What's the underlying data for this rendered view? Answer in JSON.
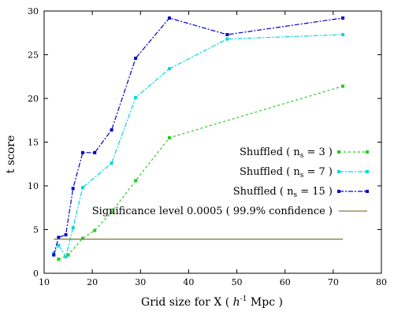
{
  "chart_data": {
    "type": "line",
    "xlabel_before": "Grid size for X ( ",
    "xlabel_h": "h",
    "xlabel_sup": "-1",
    "xlabel_after": " Mpc )",
    "ylabel": "t score",
    "xlim": [
      10,
      80
    ],
    "ylim": [
      0,
      30
    ],
    "xticks": [
      "10",
      "20",
      "30",
      "40",
      "50",
      "60",
      "70",
      "80"
    ],
    "yticks": [
      "0",
      "5",
      "10",
      "15",
      "20",
      "25",
      "30"
    ],
    "grid": false,
    "legend_position": "right",
    "series": [
      {
        "label_prefix": "Shuffled ( n",
        "label_sub": "s",
        "label_suffix": " =  3 )",
        "color": "#22cc22",
        "dash": "3,3",
        "x": [
          13,
          15,
          18,
          20.5,
          24,
          29,
          36,
          72
        ],
        "y": [
          1.6,
          2.1,
          4.0,
          4.9,
          7.0,
          10.6,
          15.5,
          21.4
        ]
      },
      {
        "label_prefix": "Shuffled ( n",
        "label_sub": "s",
        "label_suffix": " =  7 )",
        "color": "#00d8d8",
        "dash": "6,2,2,2",
        "x": [
          12,
          13,
          14.5,
          16,
          18,
          24,
          29,
          36,
          48,
          72
        ],
        "y": [
          2.3,
          3.2,
          1.9,
          5.2,
          9.8,
          12.6,
          20.1,
          23.4,
          26.8,
          27.3
        ]
      },
      {
        "label_prefix": "Shuffled ( n",
        "label_sub": "s",
        "label_suffix": " = 15 )",
        "color": "#0000cc",
        "dash": "6,2,2,2",
        "x": [
          12,
          13,
          14.5,
          16,
          18,
          20.5,
          24,
          29,
          36,
          48,
          72
        ],
        "y": [
          2.1,
          4.1,
          4.4,
          9.7,
          13.8,
          13.8,
          16.4,
          24.6,
          29.2,
          27.3,
          29.2
        ]
      },
      {
        "label": "Significance level 0.0005 ( 99.9% confidence )",
        "color": "#808040",
        "dash": "",
        "markers": false,
        "x": [
          12,
          72
        ],
        "y": [
          3.9,
          3.9
        ]
      }
    ]
  }
}
